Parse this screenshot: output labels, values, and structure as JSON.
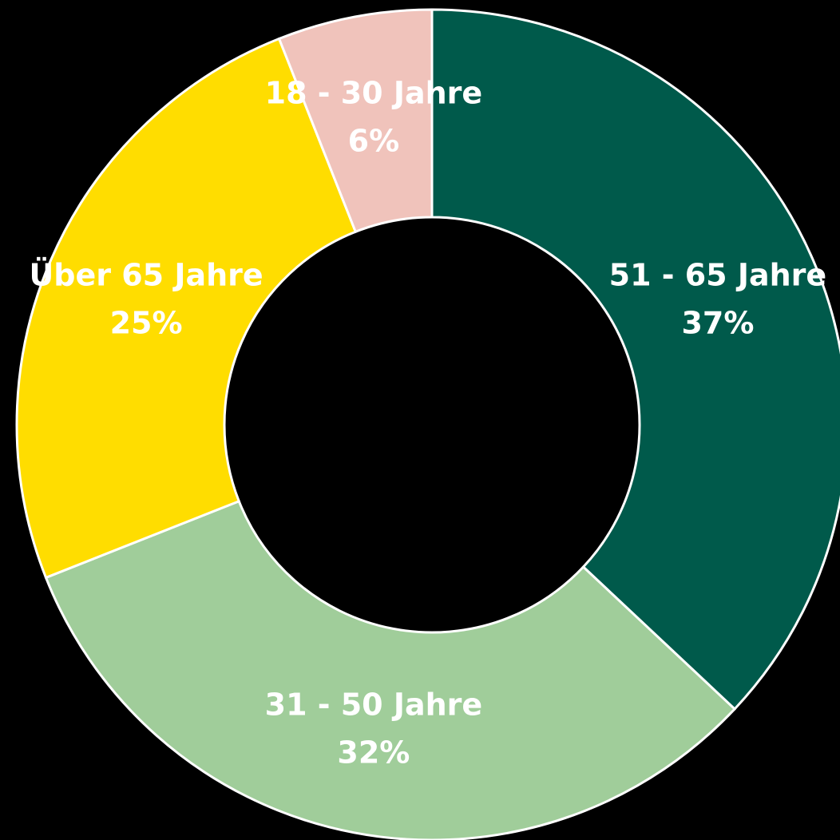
{
  "chart_data": {
    "type": "donut",
    "categories": [
      "51 - 65 Jahre",
      "31 - 50 Jahre",
      "Über 65 Jahre",
      "18 - 30 Jahre"
    ],
    "values": [
      37,
      32,
      25,
      6
    ],
    "value_labels": [
      "37%",
      "32%",
      "25%",
      "6%"
    ],
    "colors": [
      "#005a4b",
      "#a0cd9a",
      "#ffdd00",
      "#f0c3bb"
    ]
  }
}
